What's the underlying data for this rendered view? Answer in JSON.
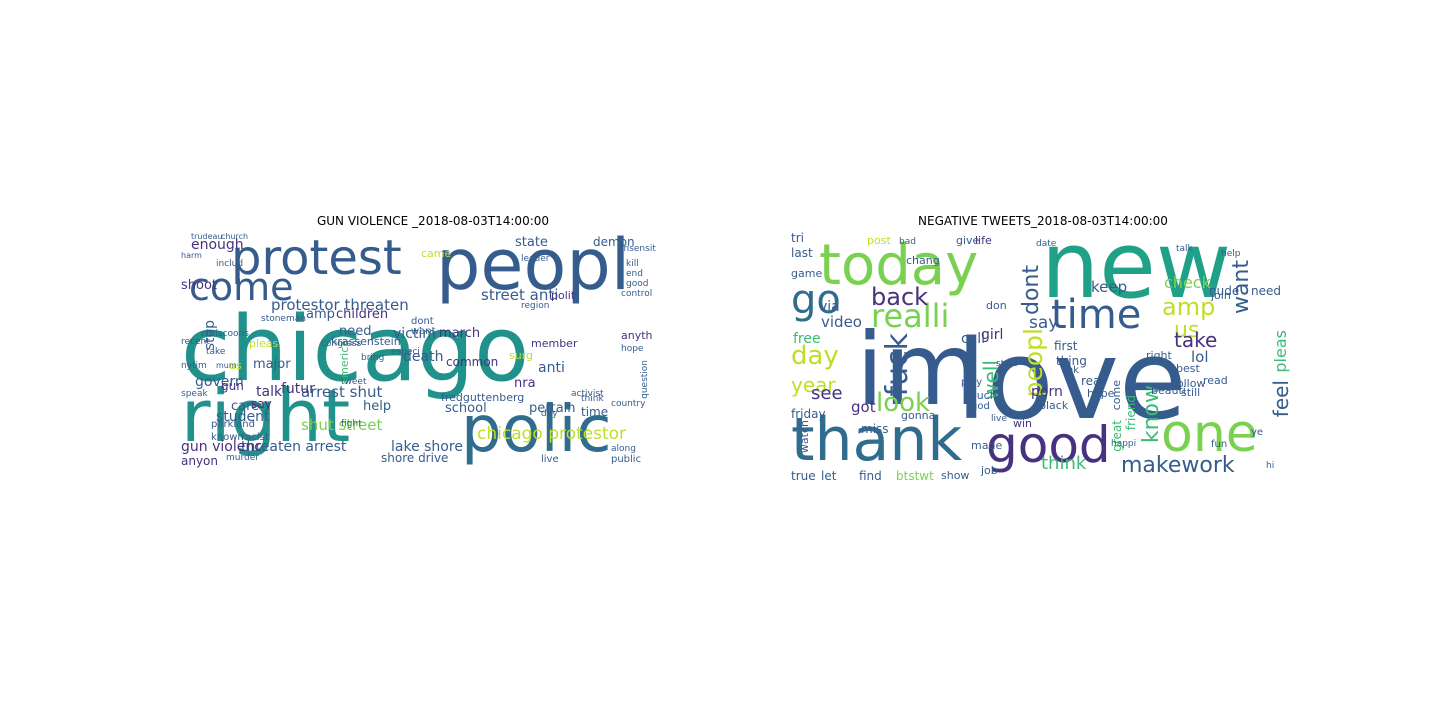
{
  "figure": {
    "left_title": "GUN VIOLENCE _2018-08-03T14:00:00",
    "right_title": "NEGATIVE TWEETS_2018-08-03T14:00:00"
  },
  "colors": {
    "purple": "#46327e",
    "indigo": "#365c8d",
    "blue": "#2f6c8e",
    "teal": "#21918c",
    "sea": "#1fa187",
    "green": "#3bbb75",
    "lime": "#7ad151",
    "yellow": "#bddf26",
    "dark": "#440154"
  },
  "left_words": [
    {
      "text": "chicago",
      "c": "teal"
    },
    {
      "text": "peopl",
      "c": "indigo"
    },
    {
      "text": "protest",
      "c": "indigo"
    },
    {
      "text": "right",
      "c": "teal"
    },
    {
      "text": "polic",
      "c": "blue"
    },
    {
      "text": "come",
      "c": "indigo"
    },
    {
      "text": "protestor threaten",
      "c": "indigo"
    },
    {
      "text": "street anti",
      "c": "indigo"
    },
    {
      "text": "arrest shut",
      "c": "indigo"
    },
    {
      "text": "chicago protestor",
      "c": "yellow"
    },
    {
      "text": "shut street",
      "c": "lime"
    },
    {
      "text": "threaten arrest",
      "c": "indigo"
    },
    {
      "text": "lake shore",
      "c": "indigo"
    },
    {
      "text": "gun violenc",
      "c": "purple"
    },
    {
      "text": "student",
      "c": "indigo"
    },
    {
      "text": "govern",
      "c": "indigo"
    },
    {
      "text": "enough",
      "c": "purple"
    },
    {
      "text": "shoot",
      "c": "purple"
    },
    {
      "text": "amp",
      "c": "indigo"
    },
    {
      "text": "children",
      "c": "purple"
    },
    {
      "text": "need",
      "c": "indigo"
    },
    {
      "text": "victim",
      "c": "indigo"
    },
    {
      "text": "death",
      "c": "indigo"
    },
    {
      "text": "march",
      "c": "purple"
    },
    {
      "text": "state",
      "c": "indigo"
    },
    {
      "text": "demon",
      "c": "indigo"
    },
    {
      "text": "talk",
      "c": "purple"
    },
    {
      "text": "futur",
      "c": "purple"
    },
    {
      "text": "help",
      "c": "indigo"
    },
    {
      "text": "school",
      "c": "indigo"
    },
    {
      "text": "nra",
      "c": "purple"
    },
    {
      "text": "anti",
      "c": "indigo"
    },
    {
      "text": "time",
      "c": "indigo"
    },
    {
      "text": "pertain",
      "c": "indigo"
    },
    {
      "text": "care",
      "c": "indigo"
    },
    {
      "text": "major",
      "c": "indigo"
    },
    {
      "text": "stop",
      "c": "indigo"
    },
    {
      "text": "say",
      "c": "purple"
    },
    {
      "text": "gun",
      "c": "purple"
    },
    {
      "text": "common",
      "c": "purple"
    },
    {
      "text": "anyon",
      "c": "purple"
    },
    {
      "text": "came",
      "c": "yellow"
    },
    {
      "text": "pleas",
      "c": "yellow"
    },
    {
      "text": "america",
      "c": "green"
    },
    {
      "text": "polit",
      "c": "purple"
    },
    {
      "text": "member",
      "c": "purple"
    },
    {
      "text": "anyth",
      "c": "purple"
    },
    {
      "text": "surg",
      "c": "yellow"
    },
    {
      "text": "fredguttenberg",
      "c": "indigo"
    },
    {
      "text": "krassenstein",
      "c": "indigo"
    },
    {
      "text": "us",
      "c": "yellow"
    },
    {
      "text": "dont",
      "c": "indigo"
    },
    {
      "text": "want",
      "c": "indigo"
    },
    {
      "text": "parkland",
      "c": "indigo"
    },
    {
      "text": "known",
      "c": "indigo"
    },
    {
      "text": "racist",
      "c": "indigo"
    },
    {
      "text": "region",
      "c": "indigo"
    },
    {
      "text": "live",
      "c": "indigo"
    },
    {
      "text": "public",
      "c": "indigo"
    },
    {
      "text": "shore drive",
      "c": "indigo"
    },
    {
      "text": "recent",
      "c": "indigo"
    },
    {
      "text": "activist",
      "c": "indigo"
    },
    {
      "text": "country",
      "c": "indigo"
    },
    {
      "text": "question",
      "c": "indigo"
    },
    {
      "text": "kill",
      "c": "indigo"
    },
    {
      "text": "insensit",
      "c": "indigo"
    },
    {
      "text": "end",
      "c": "indigo"
    },
    {
      "text": "good",
      "c": "indigo"
    },
    {
      "text": "hope",
      "c": "indigo"
    },
    {
      "text": "think",
      "c": "indigo"
    },
    {
      "text": "along",
      "c": "indigo"
    },
    {
      "text": "speak",
      "c": "indigo"
    },
    {
      "text": "take",
      "c": "indigo"
    },
    {
      "text": "bring",
      "c": "indigo"
    },
    {
      "text": "tweet",
      "c": "indigo"
    },
    {
      "text": "fight",
      "c": "indigo"
    },
    {
      "text": "day",
      "c": "indigo"
    },
    {
      "text": "leader",
      "c": "indigo"
    },
    {
      "text": "stoneman",
      "c": "indigo"
    },
    {
      "text": "includ",
      "c": "indigo"
    },
    {
      "text": "chriscoons",
      "c": "indigo"
    },
    {
      "text": "especi",
      "c": "indigo"
    },
    {
      "text": "nytim",
      "c": "indigo"
    },
    {
      "text": "murder",
      "c": "indigo"
    },
    {
      "text": "control",
      "c": "indigo"
    },
    {
      "text": "congress",
      "c": "indigo"
    },
    {
      "text": "trudeau",
      "c": "indigo"
    },
    {
      "text": "church",
      "c": "indigo"
    },
    {
      "text": "mum",
      "c": "indigo"
    },
    {
      "text": "harm",
      "c": "indigo"
    }
  ],
  "right_words": [
    {
      "text": "love",
      "c": "indigo"
    },
    {
      "text": "new",
      "c": "sea"
    },
    {
      "text": "im",
      "c": "indigo"
    },
    {
      "text": "today",
      "c": "lime"
    },
    {
      "text": "thank",
      "c": "blue"
    },
    {
      "text": "good",
      "c": "purple"
    },
    {
      "text": "one",
      "c": "lime"
    },
    {
      "text": "go",
      "c": "blue"
    },
    {
      "text": "time",
      "c": "indigo"
    },
    {
      "text": "realli",
      "c": "lime"
    },
    {
      "text": "fuck",
      "c": "indigo"
    },
    {
      "text": "back",
      "c": "purple"
    },
    {
      "text": "day",
      "c": "yellow"
    },
    {
      "text": "year",
      "c": "yellow"
    },
    {
      "text": "look",
      "c": "lime"
    },
    {
      "text": "amp",
      "c": "yellow"
    },
    {
      "text": "want",
      "c": "indigo"
    },
    {
      "text": "us",
      "c": "yellow"
    },
    {
      "text": "take",
      "c": "purple"
    },
    {
      "text": "makework",
      "c": "indigo"
    },
    {
      "text": "know",
      "c": "green"
    },
    {
      "text": "feel",
      "c": "indigo"
    },
    {
      "text": "pleas",
      "c": "green"
    },
    {
      "text": "dont",
      "c": "indigo"
    },
    {
      "text": "peopl",
      "c": "yellow"
    },
    {
      "text": "think",
      "c": "green"
    },
    {
      "text": "keep",
      "c": "indigo"
    },
    {
      "text": "say",
      "c": "indigo"
    },
    {
      "text": "well",
      "c": "green"
    },
    {
      "text": "see",
      "c": "purple"
    },
    {
      "text": "got",
      "c": "purple"
    },
    {
      "text": "video",
      "c": "indigo"
    },
    {
      "text": "via",
      "c": "indigo"
    },
    {
      "text": "call",
      "c": "indigo"
    },
    {
      "text": "girl",
      "c": "purple"
    },
    {
      "text": "lol",
      "c": "indigo"
    },
    {
      "text": "check",
      "c": "lime"
    },
    {
      "text": "nude",
      "c": "indigo"
    },
    {
      "text": "free",
      "c": "green"
    },
    {
      "text": "friday",
      "c": "indigo"
    },
    {
      "text": "true",
      "c": "indigo"
    },
    {
      "text": "let",
      "c": "indigo"
    },
    {
      "text": "find",
      "c": "indigo"
    },
    {
      "text": "btstwt",
      "c": "lime"
    },
    {
      "text": "show",
      "c": "indigo"
    },
    {
      "text": "miss",
      "c": "indigo"
    },
    {
      "text": "gonna",
      "c": "indigo"
    },
    {
      "text": "win",
      "c": "purple"
    },
    {
      "text": "black",
      "c": "indigo"
    },
    {
      "text": "real",
      "c": "indigo"
    },
    {
      "text": "hope",
      "c": "indigo"
    },
    {
      "text": "porn",
      "c": "purple"
    },
    {
      "text": "best",
      "c": "indigo"
    },
    {
      "text": "still",
      "c": "indigo"
    },
    {
      "text": "read",
      "c": "indigo"
    },
    {
      "text": "follow",
      "c": "indigo"
    },
    {
      "text": "beauti",
      "c": "indigo"
    },
    {
      "text": "join",
      "c": "indigo"
    },
    {
      "text": "need",
      "c": "indigo"
    },
    {
      "text": "life",
      "c": "purple"
    },
    {
      "text": "give",
      "c": "indigo"
    },
    {
      "text": "chang",
      "c": "indigo"
    },
    {
      "text": "post",
      "c": "yellow"
    },
    {
      "text": "bad",
      "c": "indigo"
    },
    {
      "text": "tri",
      "c": "indigo"
    },
    {
      "text": "last",
      "c": "indigo"
    },
    {
      "text": "game",
      "c": "indigo"
    },
    {
      "text": "don",
      "c": "indigo"
    },
    {
      "text": "first",
      "c": "indigo"
    },
    {
      "text": "thing",
      "c": "indigo"
    },
    {
      "text": "much",
      "c": "indigo"
    },
    {
      "text": "god",
      "c": "indigo"
    },
    {
      "text": "play",
      "c": "indigo"
    },
    {
      "text": "made",
      "c": "indigo"
    },
    {
      "text": "job",
      "c": "indigo"
    },
    {
      "text": "great",
      "c": "green"
    },
    {
      "text": "friend",
      "c": "green"
    },
    {
      "text": "come",
      "c": "indigo"
    },
    {
      "text": "right",
      "c": "indigo"
    },
    {
      "text": "watch",
      "c": "indigo"
    },
    {
      "text": "fun",
      "c": "indigo"
    },
    {
      "text": "ok",
      "c": "indigo"
    },
    {
      "text": "date",
      "c": "indigo"
    },
    {
      "text": "talk",
      "c": "indigo"
    },
    {
      "text": "help",
      "c": "indigo"
    },
    {
      "text": "happi",
      "c": "indigo"
    },
    {
      "text": "live",
      "c": "indigo"
    },
    {
      "text": "start",
      "c": "indigo"
    },
    {
      "text": "ye",
      "c": "indigo"
    },
    {
      "text": "hi",
      "c": "indigo"
    }
  ]
}
